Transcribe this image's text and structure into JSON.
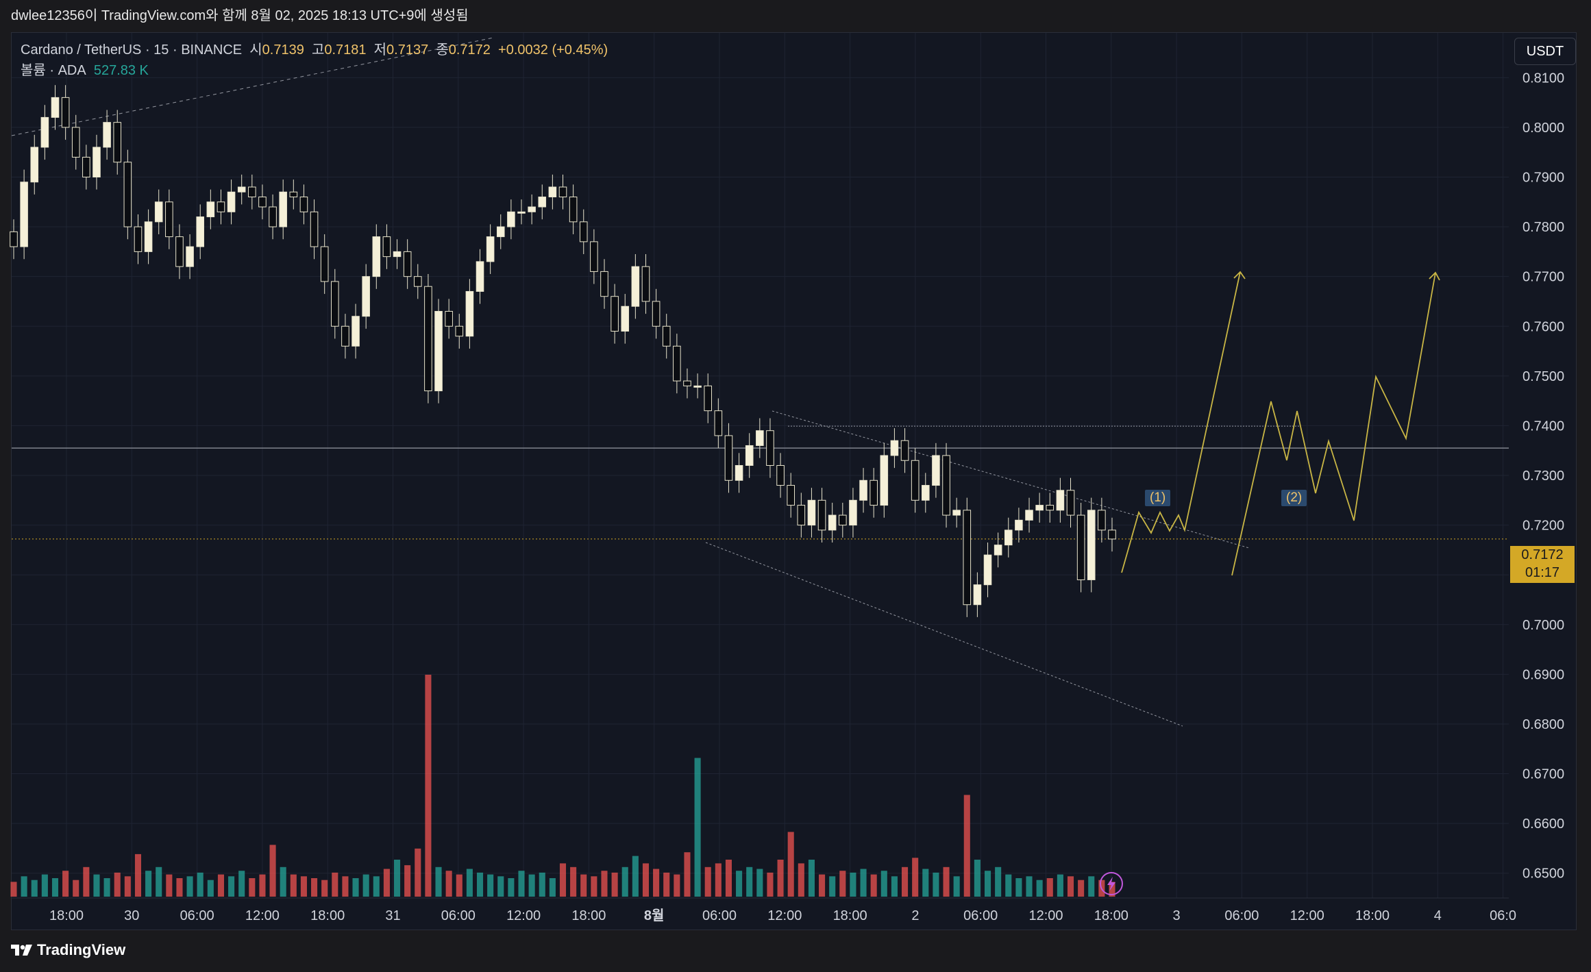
{
  "header": {
    "caption": "dwlee12356이 TradingView.com와 함께 8월 02, 2025 18:13 UTC+9에 생성됨"
  },
  "legend": {
    "symbol": "Cardano / TetherUS · 15 · BINANCE",
    "open_label": "시",
    "open": "0.7139",
    "high_label": "고",
    "high": "0.7181",
    "low_label": "저",
    "low": "0.7137",
    "close_label": "종",
    "close": "0.7172",
    "change": "+0.0032 (+0.45%)",
    "volume_label": "볼륨 · ADA",
    "volume": "527.83 K"
  },
  "unit_button": "USDT",
  "last_price": {
    "price": "0.7172",
    "countdown": "01:17"
  },
  "price_axis": [
    "0.8100",
    "0.8000",
    "0.7900",
    "0.7800",
    "0.7700",
    "0.7600",
    "0.7500",
    "0.7400",
    "0.7300",
    "0.7200",
    "0.7100",
    "0.7000",
    "0.6900",
    "0.6800",
    "0.6700",
    "0.6600",
    "0.6500"
  ],
  "time_axis": [
    "18:00",
    "30",
    "06:00",
    "12:00",
    "18:00",
    "31",
    "06:00",
    "12:00",
    "18:00",
    "8월",
    "06:00",
    "12:00",
    "18:00",
    "2",
    "06:00",
    "12:00",
    "18:00",
    "3",
    "06:00",
    "12:00",
    "18:00",
    "4",
    "06:0"
  ],
  "wave_labels": [
    "(1)",
    "(2)"
  ],
  "footer": {
    "brand": "TradingView"
  },
  "colors": {
    "background": "#131722",
    "up": "#f5f0d8",
    "down": "#f5f0d8",
    "volume_up": "#26a69a",
    "volume_down": "#ef5350",
    "projection": "#c9b645",
    "accent": "#d4a826"
  },
  "chart_data": {
    "type": "candlestick",
    "interval": "15",
    "y_range": [
      0.645,
      0.819
    ],
    "close_series": [
      0.776,
      0.789,
      0.796,
      0.802,
      0.806,
      0.8,
      0.794,
      0.79,
      0.796,
      0.801,
      0.793,
      0.78,
      0.775,
      0.781,
      0.785,
      0.778,
      0.772,
      0.776,
      0.782,
      0.785,
      0.783,
      0.787,
      0.788,
      0.786,
      0.784,
      0.78,
      0.787,
      0.786,
      0.783,
      0.776,
      0.769,
      0.76,
      0.756,
      0.762,
      0.77,
      0.778,
      0.774,
      0.775,
      0.77,
      0.768,
      0.747,
      0.763,
      0.76,
      0.758,
      0.767,
      0.773,
      0.778,
      0.78,
      0.783,
      0.783,
      0.784,
      0.786,
      0.788,
      0.786,
      0.781,
      0.777,
      0.771,
      0.766,
      0.759,
      0.764,
      0.772,
      0.765,
      0.76,
      0.756,
      0.749,
      0.748,
      0.748,
      0.743,
      0.738,
      0.729,
      0.732,
      0.736,
      0.739,
      0.732,
      0.728,
      0.724,
      0.72,
      0.725,
      0.719,
      0.722,
      0.72,
      0.725,
      0.729,
      0.724,
      0.734,
      0.737,
      0.733,
      0.725,
      0.728,
      0.734,
      0.722,
      0.723,
      0.704,
      0.708,
      0.714,
      0.716,
      0.719,
      0.721,
      0.723,
      0.724,
      0.723,
      0.727,
      0.722,
      0.709,
      0.723,
      0.719,
      0.7172
    ],
    "volume_series": [
      0.8,
      1.1,
      0.9,
      1.2,
      1.0,
      1.4,
      0.9,
      1.6,
      1.2,
      1.0,
      1.3,
      1.1,
      2.3,
      1.4,
      1.6,
      1.2,
      1.0,
      1.1,
      1.3,
      0.9,
      1.2,
      1.1,
      1.4,
      1.0,
      1.2,
      2.8,
      1.6,
      1.2,
      1.1,
      1.0,
      0.9,
      1.3,
      1.1,
      1.0,
      1.2,
      1.1,
      1.5,
      2.0,
      1.7,
      2.6,
      12.0,
      1.6,
      1.4,
      1.2,
      1.5,
      1.3,
      1.2,
      1.1,
      1.0,
      1.4,
      1.2,
      1.3,
      1.0,
      1.8,
      1.6,
      1.2,
      1.1,
      1.4,
      1.3,
      1.6,
      2.2,
      1.8,
      1.5,
      1.3,
      1.2,
      2.4,
      7.5,
      1.6,
      1.8,
      2.0,
      1.4,
      1.6,
      1.5,
      1.3,
      2.0,
      3.5,
      1.8,
      2.0,
      1.2,
      1.1,
      1.4,
      1.3,
      1.5,
      1.2,
      1.4,
      1.1,
      1.6,
      2.1,
      1.5,
      1.3,
      1.6,
      1.1,
      5.5,
      2.0,
      1.4,
      1.6,
      1.2,
      1.0,
      1.1,
      0.9,
      1.0,
      1.2,
      1.1,
      0.9,
      1.1,
      0.9,
      0.8
    ],
    "horizontal_lines": [
      0.7355,
      0.7399
    ],
    "wave_labels": [
      "(1)",
      "(2)"
    ]
  }
}
